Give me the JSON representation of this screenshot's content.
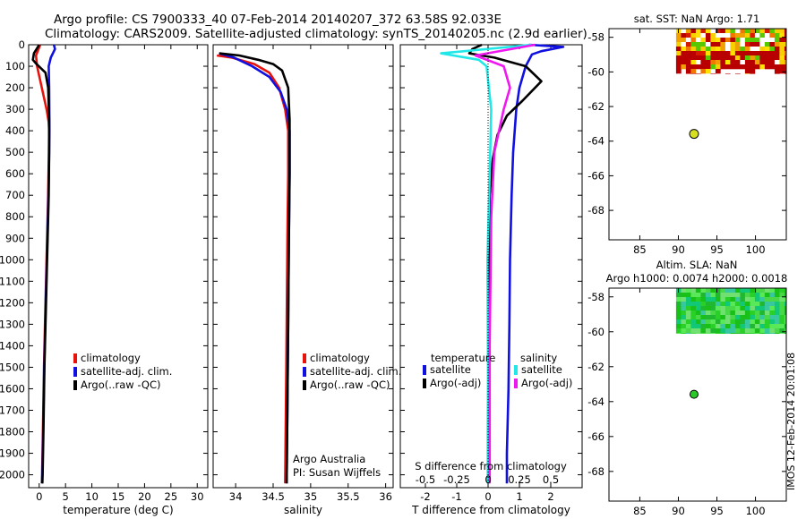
{
  "title": {
    "line1": "Argo profile: CS 7900333_40 07-Feb-2014 20140207_372 63.58S 92.033E",
    "line2": "Climatology: CARS2009. Satellite-adjusted climatology: synTS_20140205.nc (2.9d earlier)"
  },
  "side_label": "IMOS 12-Feb-2014 20:01:08",
  "colors": {
    "climatology": "#e8120c",
    "satellite": "#1010e0",
    "argo": "#000000",
    "sat_salinity": "#20e8e8",
    "argo_salinity": "#f018f0",
    "float_marker": "#d6e021"
  },
  "chart_data": [
    {
      "type": "line",
      "id": "temperature",
      "xlabel": "temperature (deg C)",
      "xlim": [
        -2,
        32
      ],
      "ylim": [
        2060,
        0
      ],
      "xticks": [
        0,
        5,
        10,
        15,
        20,
        25,
        30
      ],
      "yticks": [
        0,
        100,
        200,
        300,
        400,
        500,
        600,
        700,
        800,
        900,
        1000,
        1100,
        1200,
        1300,
        1400,
        1500,
        1600,
        1700,
        1800,
        1900,
        2000
      ],
      "legend": [
        "climatology",
        "satellite-adj. clim.",
        "Argo(..raw -QC)"
      ],
      "series": [
        {
          "name": "climatology",
          "color": "#e8120c",
          "x": [
            0.2,
            -0.6,
            -0.4,
            0.5,
            1.4,
            1.8,
            1.9,
            1.85,
            1.7,
            1.5,
            1.2,
            0.9,
            0.7,
            0.55,
            0.5
          ],
          "y": [
            0,
            50,
            100,
            200,
            300,
            360,
            400,
            500,
            700,
            900,
            1200,
            1500,
            1800,
            2000,
            2040
          ]
        },
        {
          "name": "satellite-adj. clim.",
          "color": "#1010e0",
          "x": [
            2.8,
            3.0,
            2.2,
            1.8,
            1.9,
            1.95,
            1.9,
            1.75,
            1.55,
            1.25,
            0.95,
            0.75,
            0.6,
            0.55
          ],
          "y": [
            0,
            20,
            60,
            100,
            200,
            400,
            500,
            700,
            900,
            1200,
            1500,
            1800,
            2000,
            2040
          ]
        },
        {
          "name": "Argo(..raw -QC)",
          "color": "#000000",
          "x": [
            0.0,
            -1.0,
            -1.2,
            -0.5,
            1.2,
            1.7,
            1.9,
            1.9,
            1.8,
            1.6,
            1.3,
            1.0,
            0.8,
            0.65,
            0.6
          ],
          "y": [
            0,
            40,
            70,
            90,
            130,
            200,
            350,
            500,
            700,
            900,
            1200,
            1500,
            1800,
            2000,
            2040
          ]
        }
      ]
    },
    {
      "type": "line",
      "id": "salinity",
      "xlabel": "salinity",
      "xlim": [
        33.7,
        36.1
      ],
      "ylim": [
        2060,
        0
      ],
      "xticks": [
        34,
        34.5,
        35,
        35.5,
        36
      ],
      "legend": [
        "climatology",
        "satellite-adj. clim.",
        "Argo(..raw -QC)"
      ],
      "annotation": [
        "Argo Australia",
        "PI: Susan Wijffels"
      ],
      "series": [
        {
          "name": "climatology",
          "color": "#e8120c",
          "x": [
            33.75,
            33.95,
            34.25,
            34.45,
            34.58,
            34.66,
            34.7,
            34.7,
            34.69,
            34.68,
            34.67,
            34.66
          ],
          "y": [
            50,
            60,
            90,
            130,
            200,
            300,
            400,
            600,
            900,
            1300,
            1700,
            2040
          ]
        },
        {
          "name": "satellite-adj. clim.",
          "color": "#1010e0",
          "x": [
            33.78,
            33.98,
            34.22,
            34.45,
            34.6,
            34.68,
            34.72,
            34.72,
            34.71,
            34.7,
            34.69,
            34.68
          ],
          "y": [
            40,
            60,
            100,
            150,
            220,
            300,
            400,
            600,
            900,
            1300,
            1700,
            2040
          ]
        },
        {
          "name": "Argo(..raw -QC)",
          "color": "#000000",
          "x": [
            33.78,
            34.05,
            34.3,
            34.5,
            34.62,
            34.7,
            34.72,
            34.72,
            34.71,
            34.7,
            34.69,
            34.68
          ],
          "y": [
            40,
            50,
            70,
            90,
            120,
            200,
            350,
            600,
            900,
            1300,
            1700,
            2040
          ]
        }
      ]
    },
    {
      "type": "line",
      "id": "difference",
      "xlabel": "T difference from climatology",
      "xlabel_top": "S difference from climatology",
      "xlim": [
        -2.8,
        3.0
      ],
      "ylim": [
        2060,
        0
      ],
      "xticks": [
        -2,
        -1,
        0,
        1,
        2
      ],
      "s_xticks_labels": [
        "-0.5",
        "-0.25",
        "0",
        "0.25",
        "0.5"
      ],
      "s_xticks_pos": [
        -2,
        -1,
        0,
        1,
        2
      ],
      "legend_temperature_title": "temperature",
      "legend_salinity_title": "salinity",
      "legend_labels": {
        "satellite": "satellite",
        "argo": "Argo(-adj)"
      },
      "series": [
        {
          "name": "temperature satellite",
          "color": "#1010e0",
          "x": [
            1.3,
            2.4,
            1.7,
            1.4,
            1.2,
            1.0,
            0.9,
            0.8,
            0.75,
            0.7,
            0.68,
            0.65,
            0.6,
            0.6
          ],
          "y": [
            0,
            10,
            30,
            45,
            100,
            200,
            300,
            500,
            700,
            1000,
            1300,
            1600,
            1900,
            2040
          ]
        },
        {
          "name": "temperature Argo(-adj)",
          "color": "#000000",
          "x": [
            -0.2,
            -0.5,
            -0.6,
            0.2,
            1.2,
            1.7,
            1.1,
            0.6,
            0.3,
            0.15,
            0.05,
            0.02,
            0.01,
            0.0,
            0.0
          ],
          "y": [
            0,
            20,
            40,
            60,
            100,
            170,
            260,
            330,
            420,
            530,
            700,
            1000,
            1400,
            1800,
            2040
          ]
        },
        {
          "name": "salinity satellite",
          "color": "#20e8e8",
          "x": [
            1.4,
            -1.5,
            -0.3,
            -0.05,
            0.1,
            0.05,
            -0.02,
            0.0,
            0.0
          ],
          "y": [
            0,
            40,
            70,
            100,
            300,
            600,
            1000,
            1600,
            2040
          ]
        },
        {
          "name": "salinity Argo(-adj)",
          "color": "#f018f0",
          "x": [
            1.5,
            -0.4,
            0.5,
            0.7,
            0.5,
            0.2,
            0.1,
            0.05,
            0.05
          ],
          "y": [
            0,
            50,
            100,
            200,
            300,
            500,
            800,
            1400,
            2040
          ]
        }
      ]
    },
    {
      "type": "heatmap",
      "id": "sst_map",
      "title": "sat. SST: NaN Argo: 1.71",
      "xlim": [
        81,
        104
      ],
      "ylim": [
        -69.7,
        -57.5
      ],
      "xticks": [
        85,
        90,
        95,
        100
      ],
      "yticks": [
        -58,
        -60,
        -62,
        -64,
        -66,
        -68
      ],
      "float_position": {
        "lon": 92.033,
        "lat": -63.58
      }
    },
    {
      "type": "heatmap",
      "id": "sla_map",
      "title_line1": "Altim. SLA: NaN",
      "title_line2": "Argo h1000: 0.0074 h2000: 0.0018",
      "xlim": [
        81,
        104
      ],
      "ylim": [
        -69.7,
        -57.5
      ],
      "xticks": [
        85,
        90,
        95,
        100
      ],
      "yticks": [
        -58,
        -60,
        -62,
        -64,
        -66,
        -68
      ],
      "float_position": {
        "lon": 92.033,
        "lat": -63.58
      }
    }
  ]
}
